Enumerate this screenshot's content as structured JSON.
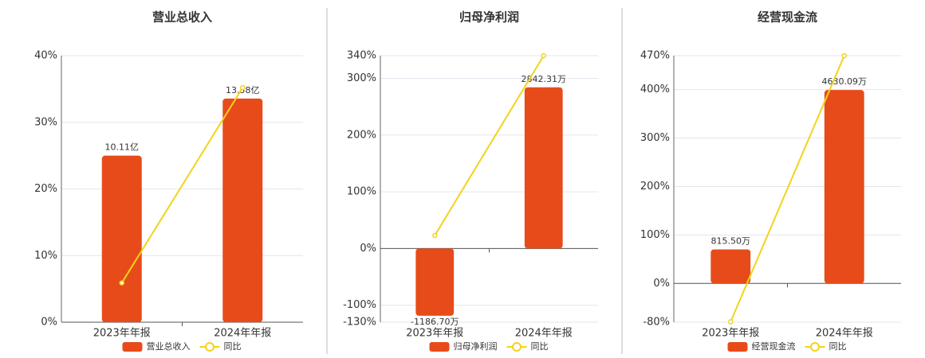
{
  "chart_data": [
    {
      "type": "bar",
      "title": "营业总收入",
      "categories": [
        "2023年年报",
        "2024年年报"
      ],
      "series": [
        {
          "name": "营业总收入",
          "type": "bar",
          "color": "#e84b1a",
          "axis": "y2",
          "values": [
            10.11,
            13.58
          ],
          "value_labels": [
            "10.11亿",
            "13.58亿"
          ]
        },
        {
          "name": "同比",
          "type": "line",
          "color": "#f2d31b",
          "values": [
            5.9,
            35.2
          ]
        }
      ],
      "ylim": [
        0,
        40
      ],
      "yticks": [
        {
          "value": 0,
          "label": "0%"
        },
        {
          "value": 10,
          "label": "10%"
        },
        {
          "value": 20,
          "label": "20%"
        },
        {
          "value": 30,
          "label": "30%"
        },
        {
          "value": 40,
          "label": "40%"
        }
      ],
      "y2lim": [
        0,
        16.18
      ],
      "grid": true
    },
    {
      "type": "bar",
      "title": "归母净利润",
      "categories": [
        "2023年年报",
        "2024年年报"
      ],
      "series": [
        {
          "name": "归母净利润",
          "type": "bar",
          "color": "#e84b1a",
          "axis": "y2",
          "values": [
            -1186.7,
            2842.31
          ],
          "value_labels": [
            "-1186.70万",
            "2842.31万"
          ]
        },
        {
          "name": "同比",
          "type": "line",
          "color": "#f2d31b",
          "values": [
            23,
            340
          ]
        }
      ],
      "ylim": [
        -130,
        340
      ],
      "yticks": [
        {
          "value": -130,
          "label": "-130%"
        },
        {
          "value": -100,
          "label": "-100%"
        },
        {
          "value": 0,
          "label": "0%"
        },
        {
          "value": 100,
          "label": "100%"
        },
        {
          "value": 200,
          "label": "200%"
        },
        {
          "value": 300,
          "label": "300%"
        },
        {
          "value": 340,
          "label": "340%"
        }
      ],
      "y2lim": [
        -1300,
        3400
      ],
      "grid": true
    },
    {
      "type": "bar",
      "title": "经营现金流",
      "categories": [
        "2023年年报",
        "2024年年报"
      ],
      "series": [
        {
          "name": "经营现金流",
          "type": "bar",
          "color": "#e84b1a",
          "axis": "y2",
          "values": [
            815.5,
            4630.09
          ],
          "value_labels": [
            "815.50万",
            "4630.09万"
          ]
        },
        {
          "name": "同比",
          "type": "line",
          "color": "#f2d31b",
          "values": [
            -79,
            470
          ]
        }
      ],
      "ylim": [
        -80,
        470
      ],
      "yticks": [
        {
          "value": -80,
          "label": "-80%"
        },
        {
          "value": 0,
          "label": "0%"
        },
        {
          "value": 100,
          "label": "100%"
        },
        {
          "value": 200,
          "label": "200%"
        },
        {
          "value": 300,
          "label": "300%"
        },
        {
          "value": 400,
          "label": "400%"
        },
        {
          "value": 470,
          "label": "470%"
        }
      ],
      "y2lim": [
        -928,
        5452
      ],
      "grid": true
    }
  ]
}
